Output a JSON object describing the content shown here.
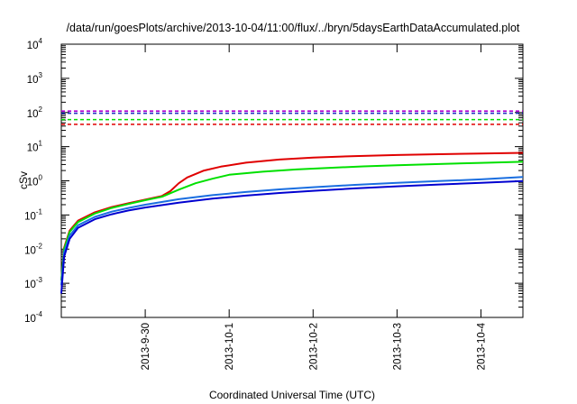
{
  "chart_data": {
    "type": "line",
    "title": "/data/run/goesPlots/archive/2013-10-04/11:00/flux/../bryn/5daysEarthDataAccumulated.plot",
    "xlabel": "Coordinated Universal Time (UTC)",
    "ylabel": "cSv",
    "yscale": "log",
    "ylim": [
      0.0001,
      10000
    ],
    "y_ticks": [
      {
        "base": "10",
        "exp": "-4",
        "value": 0.0001
      },
      {
        "base": "10",
        "exp": "-3",
        "value": 0.001
      },
      {
        "base": "10",
        "exp": "-2",
        "value": 0.01
      },
      {
        "base": "10",
        "exp": "-1",
        "value": 0.1
      },
      {
        "base": "10",
        "exp": "0",
        "value": 1
      },
      {
        "base": "10",
        "exp": "1",
        "value": 10
      },
      {
        "base": "10",
        "exp": "2",
        "value": 100
      },
      {
        "base": "10",
        "exp": "3",
        "value": 1000
      },
      {
        "base": "10",
        "exp": "4",
        "value": 10000
      }
    ],
    "x_axis": {
      "type": "date",
      "xlim": [
        "2013-09-29 00:00",
        "2013-10-04 12:00"
      ],
      "tick_labels": [
        {
          "label": "2013-9-30",
          "date": "2013-09-30 00:00"
        },
        {
          "label": "2013-10-1",
          "date": "2013-10-01 00:00"
        },
        {
          "label": "2013-10-2",
          "date": "2013-10-02 00:00"
        },
        {
          "label": "2013-10-3",
          "date": "2013-10-03 00:00"
        },
        {
          "label": "2013-10-4",
          "date": "2013-10-04 00:00"
        }
      ]
    },
    "grid": false,
    "legend": "none",
    "series": [
      {
        "color": "#e00000",
        "style": "solid",
        "points": [
          [
            "2013-09-29 00:00",
            0.0012
          ],
          [
            "2013-09-29 00:48",
            0.011
          ],
          [
            "2013-09-29 02:24",
            0.035
          ],
          [
            "2013-09-29 04:48",
            0.068
          ],
          [
            "2013-09-29 09:36",
            0.12
          ],
          [
            "2013-09-29 14:24",
            0.17
          ],
          [
            "2013-09-29 19:12",
            0.22
          ],
          [
            "2013-09-30 00:00",
            0.28
          ],
          [
            "2013-09-30 04:48",
            0.36
          ],
          [
            "2013-09-30 07:12",
            0.5
          ],
          [
            "2013-09-30 09:36",
            0.85
          ],
          [
            "2013-09-30 12:00",
            1.25
          ],
          [
            "2013-09-30 16:48",
            2.0
          ],
          [
            "2013-09-30 21:36",
            2.6
          ],
          [
            "2013-10-01 04:48",
            3.4
          ],
          [
            "2013-10-01 14:24",
            4.2
          ],
          [
            "2013-10-02 00:00",
            4.8
          ],
          [
            "2013-10-02 12:00",
            5.3
          ],
          [
            "2013-10-03 00:00",
            5.7
          ],
          [
            "2013-10-03 12:00",
            6.0
          ],
          [
            "2013-10-04 00:00",
            6.3
          ],
          [
            "2013-10-04 12:00",
            6.6
          ]
        ]
      },
      {
        "color": "#00e000",
        "style": "solid",
        "points": [
          [
            "2013-09-29 00:00",
            0.0012
          ],
          [
            "2013-09-29 00:48",
            0.01
          ],
          [
            "2013-09-29 02:24",
            0.032
          ],
          [
            "2013-09-29 04:48",
            0.062
          ],
          [
            "2013-09-29 09:36",
            0.11
          ],
          [
            "2013-09-29 14:24",
            0.16
          ],
          [
            "2013-09-29 19:12",
            0.21
          ],
          [
            "2013-09-30 00:00",
            0.27
          ],
          [
            "2013-09-30 04:48",
            0.34
          ],
          [
            "2013-09-30 09:36",
            0.55
          ],
          [
            "2013-09-30 14:24",
            0.85
          ],
          [
            "2013-09-30 19:12",
            1.15
          ],
          [
            "2013-10-01 00:00",
            1.5
          ],
          [
            "2013-10-01 09:36",
            1.85
          ],
          [
            "2013-10-01 19:12",
            2.15
          ],
          [
            "2013-10-02 04:48",
            2.4
          ],
          [
            "2013-10-02 14:24",
            2.65
          ],
          [
            "2013-10-03 00:00",
            2.85
          ],
          [
            "2013-10-03 12:00",
            3.1
          ],
          [
            "2013-10-04 00:00",
            3.35
          ],
          [
            "2013-10-04 12:00",
            3.6
          ]
        ]
      },
      {
        "color": "#1a6ee0",
        "style": "solid",
        "points": [
          [
            "2013-09-29 00:00",
            0.0009
          ],
          [
            "2013-09-29 00:48",
            0.008
          ],
          [
            "2013-09-29 02:24",
            0.025
          ],
          [
            "2013-09-29 04:48",
            0.05
          ],
          [
            "2013-09-29 09:36",
            0.088
          ],
          [
            "2013-09-29 14:24",
            0.125
          ],
          [
            "2013-09-29 19:12",
            0.16
          ],
          [
            "2013-09-30 00:00",
            0.2
          ],
          [
            "2013-09-30 09:36",
            0.29
          ],
          [
            "2013-09-30 19:12",
            0.38
          ],
          [
            "2013-10-01 04:48",
            0.47
          ],
          [
            "2013-10-01 14:24",
            0.56
          ],
          [
            "2013-10-02 00:00",
            0.65
          ],
          [
            "2013-10-02 12:00",
            0.76
          ],
          [
            "2013-10-03 00:00",
            0.87
          ],
          [
            "2013-10-03 12:00",
            0.98
          ],
          [
            "2013-10-04 00:00",
            1.1
          ],
          [
            "2013-10-04 12:00",
            1.3
          ]
        ]
      },
      {
        "color": "#0000d0",
        "style": "solid",
        "points": [
          [
            "2013-09-29 00:00",
            0.0005
          ],
          [
            "2013-09-29 00:48",
            0.006
          ],
          [
            "2013-09-29 02:24",
            0.02
          ],
          [
            "2013-09-29 04:48",
            0.042
          ],
          [
            "2013-09-29 09:36",
            0.075
          ],
          [
            "2013-09-29 14:24",
            0.105
          ],
          [
            "2013-09-29 19:12",
            0.135
          ],
          [
            "2013-09-30 00:00",
            0.165
          ],
          [
            "2013-09-30 09:36",
            0.23
          ],
          [
            "2013-09-30 19:12",
            0.3
          ],
          [
            "2013-10-01 04:48",
            0.37
          ],
          [
            "2013-10-01 14:24",
            0.44
          ],
          [
            "2013-10-02 00:00",
            0.51
          ],
          [
            "2013-10-02 12:00",
            0.6
          ],
          [
            "2013-10-03 00:00",
            0.69
          ],
          [
            "2013-10-03 12:00",
            0.78
          ],
          [
            "2013-10-04 00:00",
            0.87
          ],
          [
            "2013-10-04 12:00",
            0.98
          ]
        ]
      },
      {
        "color": "#b000d0",
        "style": "dashed",
        "constant": 110
      },
      {
        "color": "#2030c0",
        "style": "dashed",
        "constant": 95
      },
      {
        "color": "#00e000",
        "style": "dashed",
        "constant": 62
      },
      {
        "color": "#e00000",
        "style": "dashed",
        "constant": 45
      }
    ]
  }
}
